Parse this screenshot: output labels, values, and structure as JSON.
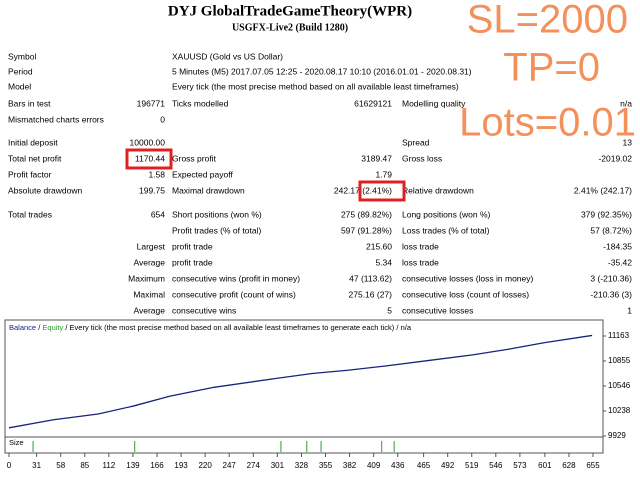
{
  "header": {
    "title": "DYJ GlobalTradeGameTheory(WPR)",
    "subtitle": "USGFX-Live2 (Build 1280)"
  },
  "overlay": [
    "SL=2000",
    "TP=0",
    "Lots=0.01"
  ],
  "rows": [
    {
      "label": "Symbol",
      "label2": "XAUUSD (Gold vs US Dollar)"
    },
    {
      "label": "Period",
      "label2": "5 Minutes (M5) 2017.07.05 12:25 - 2020.08.17 10:10 (2016.01.01 - 2020.08.31)"
    },
    {
      "label": "Model",
      "label2": "Every tick (the most precise method based on all available least timeframes)"
    },
    {
      "label": "Bars in test",
      "value1": "196771",
      "label2": "Ticks modelled",
      "value2": "61629121",
      "label3": "Modelling quality",
      "value3": "n/a"
    },
    {
      "label": "Mismatched charts errors",
      "value1": "0"
    },
    {
      "label": "Initial deposit",
      "value1": "10000.00",
      "label3": "Spread",
      "value3": "13"
    },
    {
      "label": "Total net profit",
      "value1": "1170.44",
      "label2": "Gross profit",
      "value2": "3189.47",
      "label3": "Gross loss",
      "value3": "-2019.02"
    },
    {
      "label": "Profit factor",
      "value1": "1.58",
      "label2": "Expected payoff",
      "value2": "1.79"
    },
    {
      "label": "Absolute drawdown",
      "value1": "199.75",
      "label2": "Maximal drawdown",
      "value2": "242.17 (2.41%)",
      "label3": "Relative drawdown",
      "value3": "2.41% (242.17)"
    },
    {
      "label": "Total trades",
      "value1": "654",
      "label2": "Short positions (won %)",
      "value2": "275 (89.82%)",
      "label3": "Long positions (won %)",
      "value3": "379 (92.35%)"
    },
    {
      "label2": "Profit trades (% of total)",
      "value2": "597 (91.28%)",
      "label3": "Loss trades (% of total)",
      "value3": "57 (8.72%)"
    },
    {
      "group": "Largest",
      "label2": "profit trade",
      "value2": "215.60",
      "label3": "loss trade",
      "value3": "-184.35"
    },
    {
      "group": "Average",
      "label2": "profit trade",
      "value2": "5.34",
      "label3": "loss trade",
      "value3": "-35.42"
    },
    {
      "group": "Maximum",
      "label2": "consecutive wins (profit in money)",
      "value2": "47 (113.62)",
      "label3": "consecutive losses (loss in money)",
      "value3": "3 (-210.36)"
    },
    {
      "group": "Maximal",
      "label2": "consecutive profit (count of wins)",
      "value2": "275.16 (27)",
      "label3": "consecutive loss (count of losses)",
      "value3": "-210.36 (3)"
    },
    {
      "group": "Average",
      "label2": "consecutive wins",
      "value2": "5",
      "label3": "consecutive losses",
      "value3": "1"
    }
  ],
  "chart": {
    "type": "line",
    "legend": [
      "Balance",
      "Equity",
      "Every tick (the most precise method based on all available least timeframes to generate each tick)",
      "n/a"
    ],
    "legend_separator": "/",
    "size_label": "Size",
    "x": [
      0,
      50,
      100,
      140,
      180,
      230,
      300,
      340,
      380,
      420,
      470,
      520,
      560,
      600,
      654
    ],
    "series": [
      {
        "name": "Balance",
        "color": "#1a237e",
        "values": [
          10030,
          10130,
          10200,
          10300,
          10420,
          10530,
          10640,
          10700,
          10740,
          10790,
          10860,
          10930,
          11000,
          11080,
          11170
        ]
      }
    ],
    "size_spikes": [
      27,
      141,
      305,
      334,
      350,
      418,
      432
    ],
    "equity_color": "#2e9e2e",
    "xlim": [
      0,
      655
    ],
    "ylim": [
      9929,
      11163
    ],
    "yticks": [
      9929,
      10238,
      10546,
      10855,
      11163
    ],
    "xticks": [
      0,
      31,
      58,
      85,
      112,
      139,
      166,
      193,
      220,
      247,
      274,
      301,
      328,
      355,
      382,
      409,
      436,
      465,
      492,
      519,
      546,
      573,
      601,
      628,
      655
    ]
  }
}
